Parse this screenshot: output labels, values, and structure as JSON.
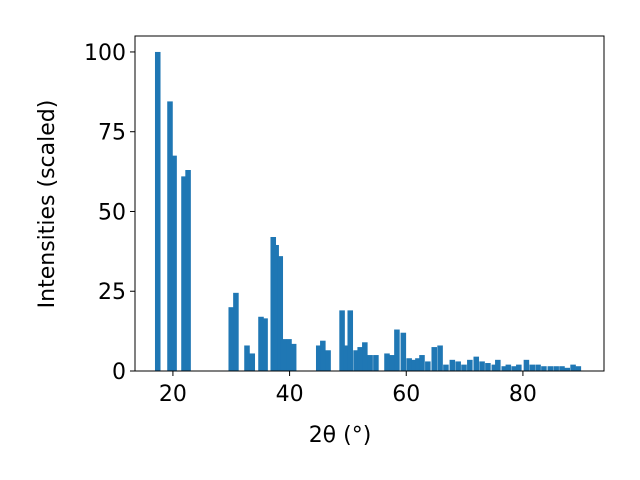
{
  "chart_data": {
    "type": "bar",
    "xlabel": "2θ (°)",
    "ylabel": "Intensities (scaled)",
    "x": [
      17.4,
      19.5,
      20.2,
      21.9,
      22.6,
      30.0,
      30.8,
      32.7,
      33.6,
      35.1,
      35.8,
      37.2,
      37.7,
      38.4,
      39.0,
      39.9,
      40.7,
      45.0,
      45.7,
      46.6,
      49.0,
      49.7,
      50.4,
      51.4,
      52.1,
      52.9,
      53.8,
      54.8,
      56.7,
      57.6,
      58.4,
      59.5,
      60.5,
      61.3,
      62.0,
      62.7,
      63.7,
      64.8,
      65.8,
      66.8,
      67.9,
      68.9,
      69.9,
      70.9,
      72.0,
      73.0,
      74.0,
      75.1,
      75.7,
      76.8,
      77.5,
      78.5,
      79.3,
      80.6,
      81.6,
      82.6,
      83.6,
      84.7,
      85.7,
      86.7,
      87.6,
      88.6,
      89.5
    ],
    "values": [
      100,
      84.5,
      67.5,
      61,
      63,
      20,
      24.5,
      8,
      5.5,
      17,
      16.5,
      42,
      39.5,
      36,
      10,
      10,
      8.5,
      8,
      9.5,
      6.5,
      19,
      8,
      19,
      6.5,
      7.5,
      9,
      5,
      5,
      5.5,
      5,
      13,
      12,
      4,
      3.5,
      4,
      5,
      3,
      7.5,
      8,
      2,
      3.5,
      3,
      2,
      3.5,
      4.5,
      3,
      2.5,
      2,
      3.5,
      1.5,
      2,
      1.5,
      2,
      3.5,
      2,
      2,
      1.5,
      1.5,
      1.5,
      1.5,
      1,
      2,
      1.5
    ],
    "color": "#1f77b4",
    "xlim": [
      13.5,
      93.9
    ],
    "xticks": [
      20,
      40,
      60,
      80
    ],
    "ylim": [
      0,
      105
    ],
    "yticks": [
      0,
      25,
      50,
      75,
      100
    ]
  }
}
